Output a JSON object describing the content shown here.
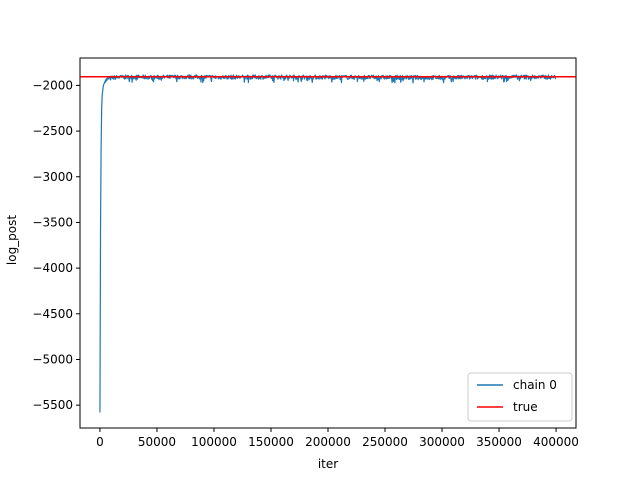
{
  "chart_data": {
    "type": "line",
    "title": "",
    "xlabel": "iter",
    "ylabel": "log_post",
    "xlim": [
      -17500,
      417500
    ],
    "ylim": [
      -5750,
      -1700
    ],
    "xticks": [
      0,
      50000,
      100000,
      150000,
      200000,
      250000,
      300000,
      350000,
      400000
    ],
    "xtick_labels": [
      "0",
      "50000",
      "100000",
      "150000",
      "200000",
      "250000",
      "300000",
      "350000",
      "400000"
    ],
    "yticks": [
      -2000,
      -2500,
      -3000,
      -3500,
      -4000,
      -4500,
      -5000,
      -5500
    ],
    "ytick_labels": [
      "−2000",
      "−2500",
      "−3000",
      "−3500",
      "−4000",
      "−4500",
      "−5000",
      "−5500"
    ],
    "grid": false,
    "legend_position": "lower-right",
    "series": [
      {
        "name": "chain 0",
        "color": "#1f77b4",
        "x": [
          0,
          500,
          1000,
          1500,
          2000,
          3000,
          5000,
          8000,
          12000,
          20000,
          30000,
          50000,
          75000,
          100000,
          150000,
          200000,
          250000,
          300000,
          350000,
          400000
        ],
        "y": [
          -5580,
          -3600,
          -2700,
          -2250,
          -2100,
          -2000,
          -1940,
          -1925,
          -1915,
          -1910,
          -1908,
          -1912,
          -1906,
          -1910,
          -1908,
          -1910,
          -1912,
          -1915,
          -1908,
          -1910
        ],
        "noise_band": [
          -1960,
          -1880
        ]
      },
      {
        "name": "true",
        "color": "#ff0000",
        "y": -1905
      }
    ]
  }
}
